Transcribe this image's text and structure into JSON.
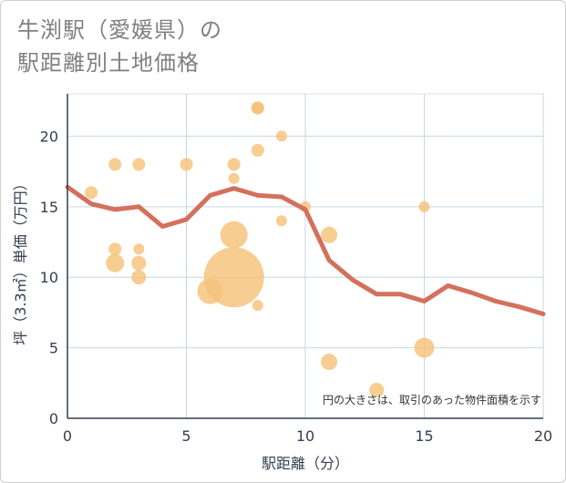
{
  "title_line1": "牛渕駅（愛媛県）の",
  "title_line2": "駅距離別土地価格",
  "chart_data": {
    "type": "scatter",
    "xlabel": "駅距離（分）",
    "ylabel": "坪（3.3㎡）単価（万円）",
    "xlim": [
      0,
      20
    ],
    "ylim": [
      0,
      23
    ],
    "xticks": [
      0,
      5,
      10,
      15,
      20
    ],
    "yticks": [
      0,
      5,
      10,
      15,
      20
    ],
    "grid": true,
    "note": "円の大きさは、取引のあった物件面積を示す",
    "bubble_color": "#f5c27a",
    "line_color": "#d4705c",
    "bubbles": [
      {
        "x": 1,
        "y": 16,
        "r": 7
      },
      {
        "x": 2,
        "y": 18,
        "r": 7
      },
      {
        "x": 2,
        "y": 12,
        "r": 7
      },
      {
        "x": 2,
        "y": 11,
        "r": 10
      },
      {
        "x": 3,
        "y": 18,
        "r": 7
      },
      {
        "x": 3,
        "y": 12,
        "r": 6
      },
      {
        "x": 3,
        "y": 11,
        "r": 8
      },
      {
        "x": 3,
        "y": 10,
        "r": 8
      },
      {
        "x": 5,
        "y": 18,
        "r": 7
      },
      {
        "x": 6,
        "y": 9,
        "r": 14
      },
      {
        "x": 7,
        "y": 18,
        "r": 7
      },
      {
        "x": 7,
        "y": 17,
        "r": 6
      },
      {
        "x": 7,
        "y": 13,
        "r": 15
      },
      {
        "x": 7,
        "y": 10,
        "r": 33
      },
      {
        "x": 8,
        "y": 22,
        "r": 7
      },
      {
        "x": 8,
        "y": 22,
        "r": 7
      },
      {
        "x": 8,
        "y": 19,
        "r": 7
      },
      {
        "x": 8,
        "y": 8,
        "r": 6
      },
      {
        "x": 9,
        "y": 20,
        "r": 6
      },
      {
        "x": 9,
        "y": 14,
        "r": 6
      },
      {
        "x": 10,
        "y": 15,
        "r": 6
      },
      {
        "x": 11,
        "y": 13,
        "r": 9
      },
      {
        "x": 11,
        "y": 4,
        "r": 9
      },
      {
        "x": 13,
        "y": 2,
        "r": 8
      },
      {
        "x": 15,
        "y": 15,
        "r": 6
      },
      {
        "x": 15,
        "y": 5,
        "r": 11
      }
    ],
    "line": [
      {
        "x": 0,
        "y": 16.4
      },
      {
        "x": 1,
        "y": 15.2
      },
      {
        "x": 2,
        "y": 14.8
      },
      {
        "x": 3,
        "y": 15.0
      },
      {
        "x": 4,
        "y": 13.6
      },
      {
        "x": 5,
        "y": 14.1
      },
      {
        "x": 6,
        "y": 15.8
      },
      {
        "x": 7,
        "y": 16.3
      },
      {
        "x": 8,
        "y": 15.8
      },
      {
        "x": 9,
        "y": 15.7
      },
      {
        "x": 10,
        "y": 14.8
      },
      {
        "x": 11,
        "y": 11.2
      },
      {
        "x": 12,
        "y": 9.8
      },
      {
        "x": 13,
        "y": 8.8
      },
      {
        "x": 14,
        "y": 8.8
      },
      {
        "x": 15,
        "y": 8.3
      },
      {
        "x": 16,
        "y": 9.4
      },
      {
        "x": 17,
        "y": 8.9
      },
      {
        "x": 18,
        "y": 8.3
      },
      {
        "x": 19,
        "y": 7.9
      },
      {
        "x": 20,
        "y": 7.4
      }
    ]
  }
}
